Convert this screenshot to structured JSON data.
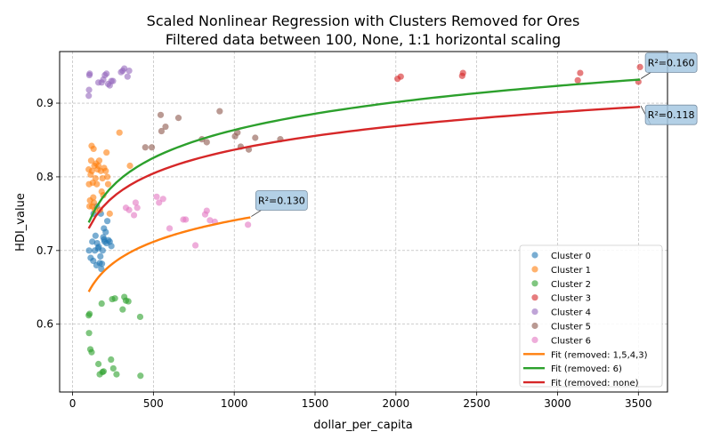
{
  "chart_data": {
    "type": "scatter",
    "title": [
      "Scaled Nonlinear Regression with Clusters Removed for Ores",
      "Filtered data between 100, None, 1:1 horizontal scaling"
    ],
    "xlabel": "dollar_per_capita",
    "ylabel": "HDI_value",
    "xlim": [
      -80,
      3680
    ],
    "ylim": [
      0.508,
      0.97
    ],
    "xticks": [
      0,
      500,
      1000,
      1500,
      2000,
      2500,
      3000,
      3500
    ],
    "yticks": [
      0.6,
      0.7,
      0.8,
      0.9
    ],
    "ytick_labels": [
      "0.6",
      "0.7",
      "0.8",
      "0.9"
    ],
    "grid": true,
    "legend_position": "lower-right",
    "series": [
      {
        "name": "Cluster 0",
        "color": "#1f77b4",
        "points": [
          [
            102,
            0.7
          ],
          [
            112,
            0.69
          ],
          [
            122,
            0.712
          ],
          [
            128,
            0.686
          ],
          [
            138,
            0.7
          ],
          [
            142,
            0.72
          ],
          [
            148,
            0.68
          ],
          [
            152,
            0.71
          ],
          [
            158,
            0.703
          ],
          [
            162,
            0.705
          ],
          [
            168,
            0.683
          ],
          [
            172,
            0.692
          ],
          [
            175,
            0.75
          ],
          [
            178,
            0.675
          ],
          [
            182,
            0.682
          ],
          [
            186,
            0.7
          ],
          [
            190,
            0.718
          ],
          [
            194,
            0.73
          ],
          [
            198,
            0.712
          ],
          [
            205,
            0.725
          ],
          [
            210,
            0.71
          ],
          [
            215,
            0.74
          ],
          [
            222,
            0.714
          ],
          [
            230,
            0.712
          ],
          [
            240,
            0.706
          ],
          [
            150,
            0.76
          ],
          [
            130,
            0.75
          ],
          [
            195,
            0.715
          ]
        ]
      },
      {
        "name": "Cluster 1",
        "color": "#ff7f0e",
        "points": [
          [
            100,
            0.81
          ],
          [
            102,
            0.79
          ],
          [
            105,
            0.76
          ],
          [
            108,
            0.768
          ],
          [
            112,
            0.803
          ],
          [
            115,
            0.822
          ],
          [
            118,
            0.842
          ],
          [
            120,
            0.808
          ],
          [
            122,
            0.76
          ],
          [
            125,
            0.792
          ],
          [
            128,
            0.772
          ],
          [
            130,
            0.838
          ],
          [
            132,
            0.765
          ],
          [
            135,
            0.815
          ],
          [
            138,
            0.755
          ],
          [
            142,
            0.798
          ],
          [
            145,
            0.818
          ],
          [
            150,
            0.79
          ],
          [
            155,
            0.81
          ],
          [
            160,
            0.815
          ],
          [
            165,
            0.822
          ],
          [
            170,
            0.755
          ],
          [
            175,
            0.808
          ],
          [
            180,
            0.78
          ],
          [
            185,
            0.798
          ],
          [
            190,
            0.775
          ],
          [
            195,
            0.812
          ],
          [
            205,
            0.808
          ],
          [
            210,
            0.833
          ],
          [
            215,
            0.8
          ],
          [
            220,
            0.79
          ],
          [
            230,
            0.75
          ],
          [
            290,
            0.86
          ],
          [
            355,
            0.815
          ]
        ]
      },
      {
        "name": "Cluster 2",
        "color": "#2ca02c",
        "points": [
          [
            100,
            0.612
          ],
          [
            102,
            0.588
          ],
          [
            105,
            0.614
          ],
          [
            110,
            0.566
          ],
          [
            118,
            0.562
          ],
          [
            160,
            0.546
          ],
          [
            168,
            0.532
          ],
          [
            180,
            0.628
          ],
          [
            185,
            0.535
          ],
          [
            192,
            0.536
          ],
          [
            238,
            0.552
          ],
          [
            245,
            0.634
          ],
          [
            252,
            0.54
          ],
          [
            262,
            0.635
          ],
          [
            272,
            0.532
          ],
          [
            310,
            0.62
          ],
          [
            320,
            0.637
          ],
          [
            330,
            0.632
          ],
          [
            345,
            0.631
          ],
          [
            418,
            0.61
          ],
          [
            420,
            0.53
          ]
        ]
      },
      {
        "name": "Cluster 3",
        "color": "#d62728",
        "points": [
          [
            2010,
            0.933
          ],
          [
            2030,
            0.936
          ],
          [
            2410,
            0.937
          ],
          [
            2415,
            0.941
          ],
          [
            3125,
            0.931
          ],
          [
            3140,
            0.941
          ],
          [
            3500,
            0.929
          ],
          [
            3510,
            0.949
          ]
        ]
      },
      {
        "name": "Cluster 4",
        "color": "#9467bd",
        "points": [
          [
            100,
            0.91
          ],
          [
            102,
            0.918
          ],
          [
            104,
            0.938
          ],
          [
            106,
            0.94
          ],
          [
            160,
            0.928
          ],
          [
            180,
            0.928
          ],
          [
            190,
            0.932
          ],
          [
            200,
            0.938
          ],
          [
            210,
            0.94
          ],
          [
            220,
            0.926
          ],
          [
            230,
            0.924
          ],
          [
            240,
            0.93
          ],
          [
            250,
            0.93
          ],
          [
            300,
            0.942
          ],
          [
            310,
            0.944
          ],
          [
            320,
            0.947
          ],
          [
            340,
            0.936
          ],
          [
            350,
            0.944
          ]
        ]
      },
      {
        "name": "Cluster 5",
        "color": "#8c564b",
        "points": [
          [
            450,
            0.84
          ],
          [
            490,
            0.84
          ],
          [
            545,
            0.884
          ],
          [
            550,
            0.862
          ],
          [
            575,
            0.868
          ],
          [
            655,
            0.88
          ],
          [
            800,
            0.851
          ],
          [
            830,
            0.847
          ],
          [
            910,
            0.889
          ],
          [
            1005,
            0.855
          ],
          [
            1020,
            0.86
          ],
          [
            1040,
            0.841
          ],
          [
            1090,
            0.837
          ],
          [
            1130,
            0.853
          ],
          [
            1285,
            0.851
          ]
        ]
      },
      {
        "name": "Cluster 6",
        "color": "#e377c2",
        "points": [
          [
            330,
            0.758
          ],
          [
            350,
            0.755
          ],
          [
            380,
            0.748
          ],
          [
            390,
            0.765
          ],
          [
            400,
            0.758
          ],
          [
            520,
            0.773
          ],
          [
            535,
            0.765
          ],
          [
            560,
            0.77
          ],
          [
            600,
            0.73
          ],
          [
            685,
            0.742
          ],
          [
            700,
            0.742
          ],
          [
            760,
            0.707
          ],
          [
            820,
            0.749
          ],
          [
            830,
            0.754
          ],
          [
            850,
            0.741
          ],
          [
            880,
            0.739
          ],
          [
            1085,
            0.735
          ]
        ]
      }
    ],
    "fits": [
      {
        "name": "Fit (removed: 1,5,4,3)",
        "color": "#ff7f0e",
        "x_range": [
          100,
          1100
        ],
        "y_start": 0.644,
        "y_end": 0.745
      },
      {
        "name": "Fit (removed: 6)",
        "color": "#2ca02c",
        "x_range": [
          100,
          3510
        ],
        "y_start": 0.738,
        "y_end": 0.932
      },
      {
        "name": "Fit (removed: none)",
        "color": "#d62728",
        "x_range": [
          100,
          3510
        ],
        "y_start": 0.73,
        "y_end": 0.895
      }
    ],
    "annotations": [
      {
        "text": "R²=0.160",
        "x": 3510,
        "y": 0.932
      },
      {
        "text": "R²=0.118",
        "x": 3510,
        "y": 0.895
      },
      {
        "text": "R²=0.130",
        "x": 1100,
        "y": 0.745
      }
    ]
  }
}
